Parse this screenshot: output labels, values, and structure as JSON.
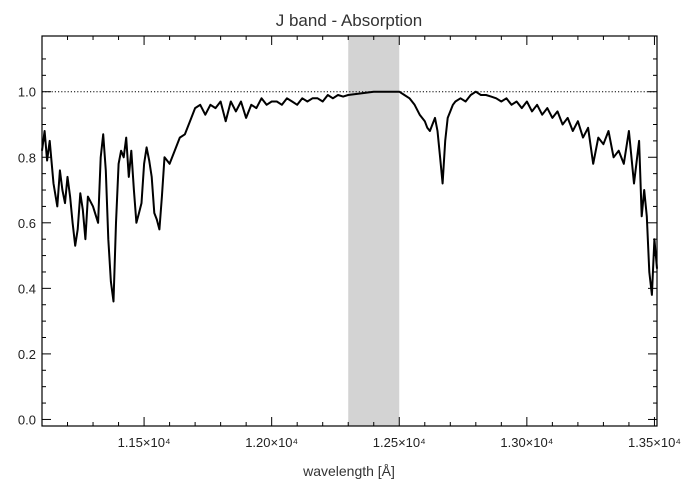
{
  "chart_data": {
    "type": "line",
    "title": "J band - Absorption",
    "xlabel": "wavelength [Å]",
    "ylabel": "",
    "xlim": [
      11100,
      13510
    ],
    "ylim": [
      -0.02,
      1.17
    ],
    "x_ticks": [
      {
        "value": 11500,
        "label": "1.15×10⁴"
      },
      {
        "value": 12000,
        "label": "1.20×10⁴"
      },
      {
        "value": 12500,
        "label": "1.25×10⁴"
      },
      {
        "value": 13000,
        "label": "1.30×10⁴"
      },
      {
        "value": 13500,
        "label": "1.35×10⁴"
      }
    ],
    "y_ticks": [
      {
        "value": 0.0,
        "label": "0.0"
      },
      {
        "value": 0.2,
        "label": "0.2"
      },
      {
        "value": 0.4,
        "label": "0.4"
      },
      {
        "value": 0.6,
        "label": "0.6"
      },
      {
        "value": 0.8,
        "label": "0.8"
      },
      {
        "value": 1.0,
        "label": "1.0"
      }
    ],
    "reference_line": {
      "y": 1.0,
      "style": "dotted"
    },
    "shaded_band": {
      "x_start": 12300,
      "x_end": 12500,
      "color": "#d3d3d3"
    },
    "series": [
      {
        "color": "#000000",
        "x": [
          11100,
          11110,
          11120,
          11130,
          11145,
          11160,
          11170,
          11180,
          11190,
          11200,
          11210,
          11220,
          11230,
          11240,
          11250,
          11260,
          11270,
          11280,
          11300,
          11320,
          11330,
          11340,
          11350,
          11360,
          11370,
          11380,
          11390,
          11400,
          11410,
          11420,
          11430,
          11440,
          11450,
          11460,
          11470,
          11480,
          11490,
          11500,
          11510,
          11520,
          11530,
          11540,
          11550,
          11560,
          11570,
          11580,
          11600,
          11620,
          11640,
          11660,
          11680,
          11700,
          11720,
          11740,
          11760,
          11780,
          11800,
          11820,
          11840,
          11860,
          11880,
          11900,
          11920,
          11940,
          11960,
          11980,
          12000,
          12020,
          12040,
          12060,
          12080,
          12100,
          12120,
          12140,
          12160,
          12180,
          12200,
          12220,
          12240,
          12260,
          12280,
          12300,
          12350,
          12400,
          12450,
          12500,
          12520,
          12540,
          12560,
          12580,
          12600,
          12610,
          12620,
          12630,
          12640,
          12650,
          12660,
          12670,
          12680,
          12690,
          12700,
          12710,
          12720,
          12740,
          12760,
          12780,
          12800,
          12820,
          12840,
          12860,
          12880,
          12900,
          12920,
          12940,
          12960,
          12980,
          13000,
          13020,
          13040,
          13060,
          13080,
          13100,
          13120,
          13140,
          13160,
          13180,
          13200,
          13220,
          13240,
          13260,
          13280,
          13300,
          13320,
          13340,
          13360,
          13380,
          13400,
          13420,
          13440,
          13450,
          13460,
          13470,
          13480,
          13490,
          13500,
          13510
        ],
        "y": [
          0.82,
          0.88,
          0.79,
          0.85,
          0.72,
          0.65,
          0.76,
          0.7,
          0.66,
          0.74,
          0.68,
          0.6,
          0.53,
          0.58,
          0.69,
          0.64,
          0.55,
          0.68,
          0.65,
          0.6,
          0.8,
          0.87,
          0.76,
          0.55,
          0.42,
          0.36,
          0.6,
          0.78,
          0.82,
          0.8,
          0.86,
          0.74,
          0.82,
          0.7,
          0.6,
          0.63,
          0.66,
          0.78,
          0.83,
          0.79,
          0.74,
          0.63,
          0.61,
          0.58,
          0.68,
          0.8,
          0.78,
          0.82,
          0.86,
          0.87,
          0.91,
          0.95,
          0.96,
          0.93,
          0.96,
          0.95,
          0.97,
          0.91,
          0.97,
          0.94,
          0.97,
          0.92,
          0.96,
          0.95,
          0.98,
          0.96,
          0.97,
          0.97,
          0.96,
          0.98,
          0.97,
          0.96,
          0.98,
          0.97,
          0.98,
          0.98,
          0.97,
          0.99,
          0.98,
          0.99,
          0.985,
          0.99,
          0.995,
          1.0,
          1.0,
          1.0,
          0.99,
          0.98,
          0.96,
          0.93,
          0.91,
          0.89,
          0.88,
          0.9,
          0.92,
          0.88,
          0.8,
          0.72,
          0.85,
          0.92,
          0.94,
          0.96,
          0.97,
          0.98,
          0.97,
          0.99,
          1.0,
          0.99,
          0.99,
          0.985,
          0.98,
          0.97,
          0.98,
          0.96,
          0.97,
          0.95,
          0.97,
          0.94,
          0.96,
          0.93,
          0.95,
          0.92,
          0.94,
          0.9,
          0.92,
          0.88,
          0.91,
          0.86,
          0.89,
          0.78,
          0.86,
          0.84,
          0.88,
          0.8,
          0.82,
          0.78,
          0.88,
          0.72,
          0.85,
          0.62,
          0.7,
          0.62,
          0.45,
          0.38,
          0.55,
          0.46
        ]
      }
    ],
    "grid": false,
    "legend": "none"
  }
}
